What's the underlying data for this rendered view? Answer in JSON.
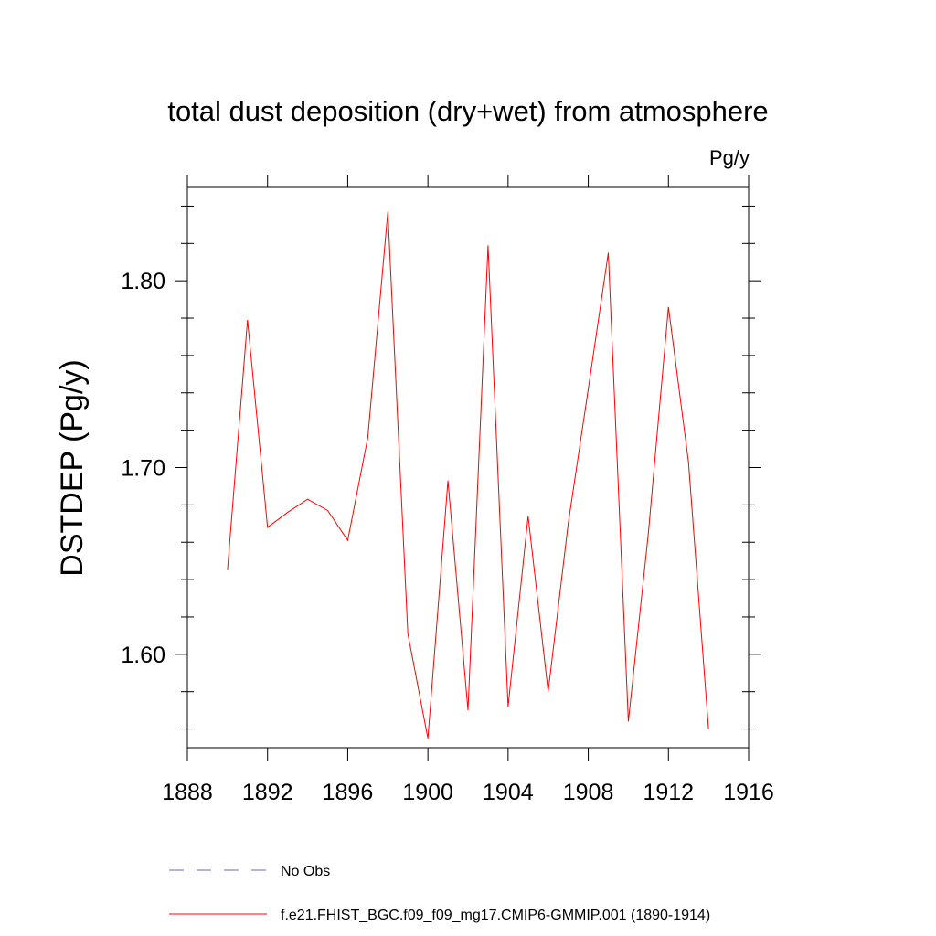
{
  "chart_data": {
    "type": "line",
    "title": "total dust deposition (dry+wet) from atmosphere",
    "units": "Pg/y",
    "ylabel": "DSTDEP  (Pg/y)",
    "xlabel": "",
    "xlim": [
      1888,
      1916
    ],
    "ylim": [
      1.55,
      1.85
    ],
    "xticks": [
      1888,
      1892,
      1896,
      1900,
      1904,
      1908,
      1912,
      1916
    ],
    "xtick_labels": [
      "1888",
      "1892",
      "1896",
      "1900",
      "1904",
      "1908",
      "1912",
      "1916"
    ],
    "yticks": [
      1.6,
      1.7,
      1.8
    ],
    "ytick_labels": [
      "1.60",
      "1.70",
      "1.80"
    ],
    "grid": false,
    "legend_position": "bottom",
    "series": [
      {
        "name": "f.e21.FHIST_BGC.f09_f09_mg17.CMIP6-GMMIP.001 (1890-1914)",
        "color": "#ff0000",
        "style": "solid",
        "x": [
          1890,
          1891,
          1892,
          1893,
          1894,
          1895,
          1896,
          1897,
          1898,
          1899,
          1900,
          1901,
          1902,
          1903,
          1904,
          1905,
          1906,
          1907,
          1908,
          1909,
          1910,
          1911,
          1912,
          1913,
          1914
        ],
        "y": [
          1.645,
          1.779,
          1.668,
          1.676,
          1.683,
          1.677,
          1.661,
          1.716,
          1.837,
          1.611,
          1.555,
          1.693,
          1.57,
          1.819,
          1.572,
          1.674,
          1.58,
          1.67,
          1.742,
          1.815,
          1.564,
          1.665,
          1.786,
          1.703,
          1.56
        ]
      }
    ],
    "legend_entries": [
      {
        "label": "No Obs",
        "color": "#6b6bb3",
        "style": "dashed"
      },
      {
        "label": "f.e21.FHIST_BGC.f09_f09_mg17.CMIP6-GMMIP.001 (1890-1914)",
        "color": "#ff0000",
        "style": "solid"
      }
    ]
  }
}
